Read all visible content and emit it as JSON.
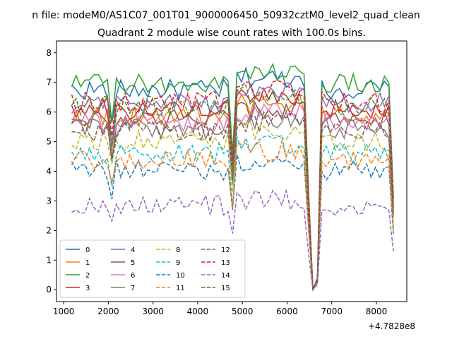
{
  "chart_data": {
    "type": "line",
    "suptitle": "n file: modeM0/AS1C07_001T01_9000006450_50932cztM0_level2_quad_clean",
    "title": "Quadrant 2 module wise count rates with 100.0s bins.",
    "xlabel": "",
    "ylabel": "",
    "x_offset_label": "+4.7828e8",
    "xlim": [
      840,
      8680
    ],
    "ylim": [
      -0.4,
      8.4
    ],
    "xticks": [
      1000,
      2000,
      3000,
      4000,
      5000,
      6000,
      7000,
      8000
    ],
    "yticks": [
      0,
      1,
      2,
      3,
      4,
      5,
      6,
      7,
      8
    ],
    "grid": false,
    "legend": {
      "placement": "lower-left",
      "columns": 4
    },
    "x_start": 1180,
    "x_step": 100,
    "series": [
      {
        "name": "0",
        "color": "#1f77b4",
        "style": "solid",
        "base": 6.75
      },
      {
        "name": "1",
        "color": "#ff7f0e",
        "style": "solid",
        "base": 5.9
      },
      {
        "name": "2",
        "color": "#2ca02c",
        "style": "solid",
        "base": 6.95
      },
      {
        "name": "3",
        "color": "#d62728",
        "style": "solid",
        "base": 6.1
      },
      {
        "name": "4",
        "color": "#9467bd",
        "style": "solid",
        "base": 6.3
      },
      {
        "name": "5",
        "color": "#8c564b",
        "style": "solid",
        "base": 5.75
      },
      {
        "name": "6",
        "color": "#e377c2",
        "style": "solid",
        "base": 5.65
      },
      {
        "name": "7",
        "color": "#7f7f7f",
        "style": "solid",
        "base": 5.45
      },
      {
        "name": "8",
        "color": "#bcbd22",
        "style": "dashed",
        "base": 5.05
      },
      {
        "name": "9",
        "color": "#17becf",
        "style": "dashed",
        "base": 4.6
      },
      {
        "name": "10",
        "color": "#1f77b4",
        "style": "dashed",
        "base": 4.05
      },
      {
        "name": "11",
        "color": "#ff7f0e",
        "style": "dashed",
        "base": 4.4
      },
      {
        "name": "12",
        "color": "#2ca02c",
        "style": "dashed",
        "base": 6.2
      },
      {
        "name": "13",
        "color": "#d62728",
        "style": "dashed",
        "base": 6.35
      },
      {
        "name": "14",
        "color": "#9467bd",
        "style": "dashed",
        "base": 2.85
      },
      {
        "name": "15",
        "color": "#8c564b",
        "style": "dashed",
        "base": 5.35
      }
    ]
  }
}
